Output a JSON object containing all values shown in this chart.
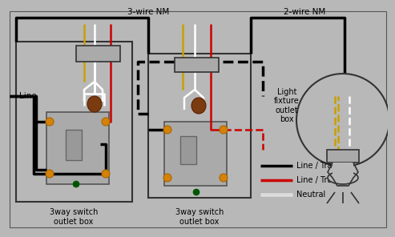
{
  "bg_color": "#b8b8b8",
  "wire_black": "#000000",
  "wire_red": "#cc0000",
  "wire_white": "#ffffff",
  "wire_yellow": "#c8a000",
  "wire_green": "#005500",
  "wire_brown": "#7a3b10",
  "screw_color": "#d4820a",
  "switch_fill": "#aaaaaa",
  "box_edge": "#333333",
  "label_3wire": "3-wire NM",
  "label_2wire": "2-wire NM",
  "label_line": "Line",
  "label_box1": "3way switch\noutlet box",
  "label_box2": "3way switch\noutlet box",
  "label_lightbox": "Light\nfixture\noutlet\nbox",
  "legend_black_label": "Line / Traveler",
  "legend_red_label": "Line / Traveler",
  "legend_white_label": "Neutral",
  "font_size": 7.5
}
